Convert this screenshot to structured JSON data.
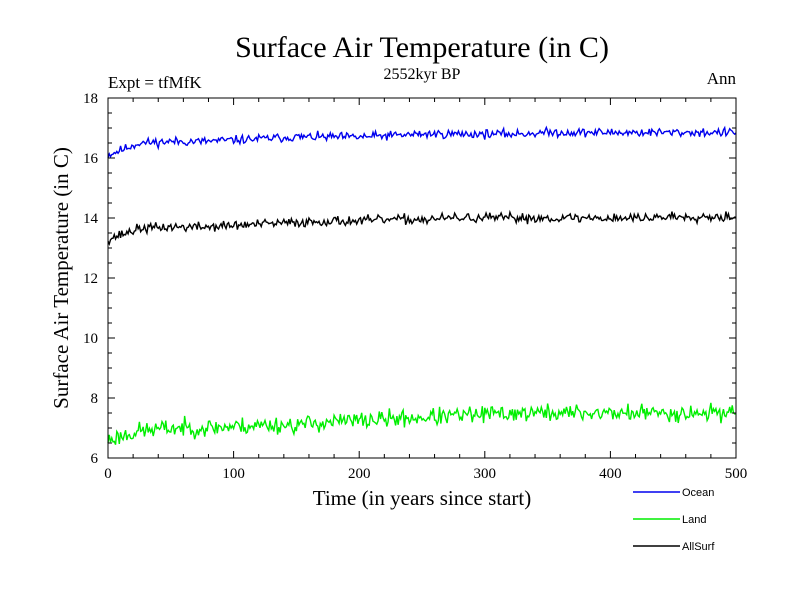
{
  "chart_data": {
    "type": "line",
    "title": "Surface Air Temperature (in C)",
    "subtitle": "2552kyr BP",
    "left_label": "Expt = tfMfK",
    "right_label": "Ann",
    "xlabel": "Time (in years since start)",
    "ylabel": "Surface Air Temperature (in C)",
    "xlim": [
      0,
      500
    ],
    "ylim": [
      6,
      18
    ],
    "x_ticks": [
      0,
      100,
      200,
      300,
      400,
      500
    ],
    "y_ticks": [
      6,
      8,
      10,
      12,
      14,
      16,
      18
    ],
    "x_tick_labels": [
      "0",
      "100",
      "200",
      "300",
      "400",
      "500"
    ],
    "y_tick_labels": [
      "6",
      "8",
      "10",
      "12",
      "14",
      "16",
      "18"
    ],
    "grid": false,
    "legend_position": "bottom-right",
    "x": [
      0,
      25,
      50,
      75,
      100,
      125,
      150,
      175,
      200,
      225,
      250,
      275,
      300,
      325,
      350,
      375,
      400,
      425,
      450,
      475,
      500
    ],
    "series": [
      {
        "name": "Ocean",
        "color": "#0000ee",
        "noise": 0.09,
        "seed": 11,
        "values": [
          16.1,
          16.5,
          16.55,
          16.55,
          16.6,
          16.65,
          16.7,
          16.7,
          16.7,
          16.75,
          16.8,
          16.8,
          16.8,
          16.8,
          16.85,
          16.85,
          16.85,
          16.85,
          16.85,
          16.85,
          16.85
        ]
      },
      {
        "name": "Land",
        "color": "#00ee00",
        "noise": 0.18,
        "seed": 23,
        "values": [
          6.6,
          6.9,
          7.0,
          7.0,
          7.05,
          7.1,
          7.1,
          7.2,
          7.25,
          7.3,
          7.35,
          7.4,
          7.45,
          7.5,
          7.5,
          7.5,
          7.5,
          7.5,
          7.5,
          7.5,
          7.55
        ]
      },
      {
        "name": "AllSurf",
        "color": "#000000",
        "noise": 0.1,
        "seed": 37,
        "values": [
          13.3,
          13.65,
          13.7,
          13.7,
          13.75,
          13.8,
          13.85,
          13.9,
          13.9,
          13.95,
          13.95,
          14.0,
          14.0,
          14.0,
          14.0,
          14.0,
          14.0,
          14.0,
          14.05,
          14.05,
          14.05
        ]
      }
    ]
  }
}
